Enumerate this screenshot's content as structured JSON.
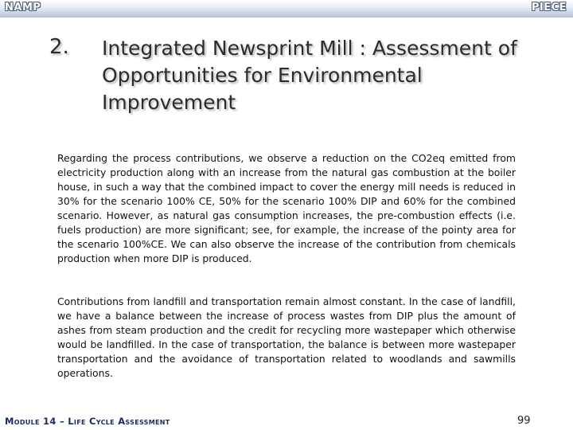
{
  "header": {
    "left_label": "NAMP",
    "right_label": "PIECE"
  },
  "slide": {
    "number_label": "2.",
    "title": "Integrated Newsprint Mill : Assessment of Opportunities for Environmental Improvement",
    "paragraphs": [
      "Regarding the process contributions, we observe a reduction on the CO2eq emitted from electricity production along with an increase from the natural gas combustion at the boiler house, in such a way that the combined impact to cover the energy mill needs is reduced in 30% for the scenario 100% CE, 50% for the scenario 100% DIP and 60% for the combined scenario.  However, as natural gas consumption increases, the pre-combustion effects (i.e. fuels production) are more significant; see, for example, the increase of the pointy area for the scenario 100%CE.  We can also observe the increase of the contribution from chemicals production when more DIP is produced.",
      "Contributions from landfill and transportation remain almost constant.  In the case of landfill, we have a balance between the increase of process wastes from DIP plus the amount of ashes from steam production and the credit for recycling more wastepaper which otherwise would be landfilled.  In the case of transportation, the balance is between more wastepaper transportation and the avoidance of transportation related to woodlands and sawmills operations."
    ]
  },
  "footer": {
    "module_label": "Module 14 – Life Cycle Assessment",
    "page_number": "99"
  },
  "colors": {
    "header_gradient_bottom": "#b5c3d6",
    "footer_text": "#1a2a5c",
    "title_text": "#2b2b2b"
  }
}
